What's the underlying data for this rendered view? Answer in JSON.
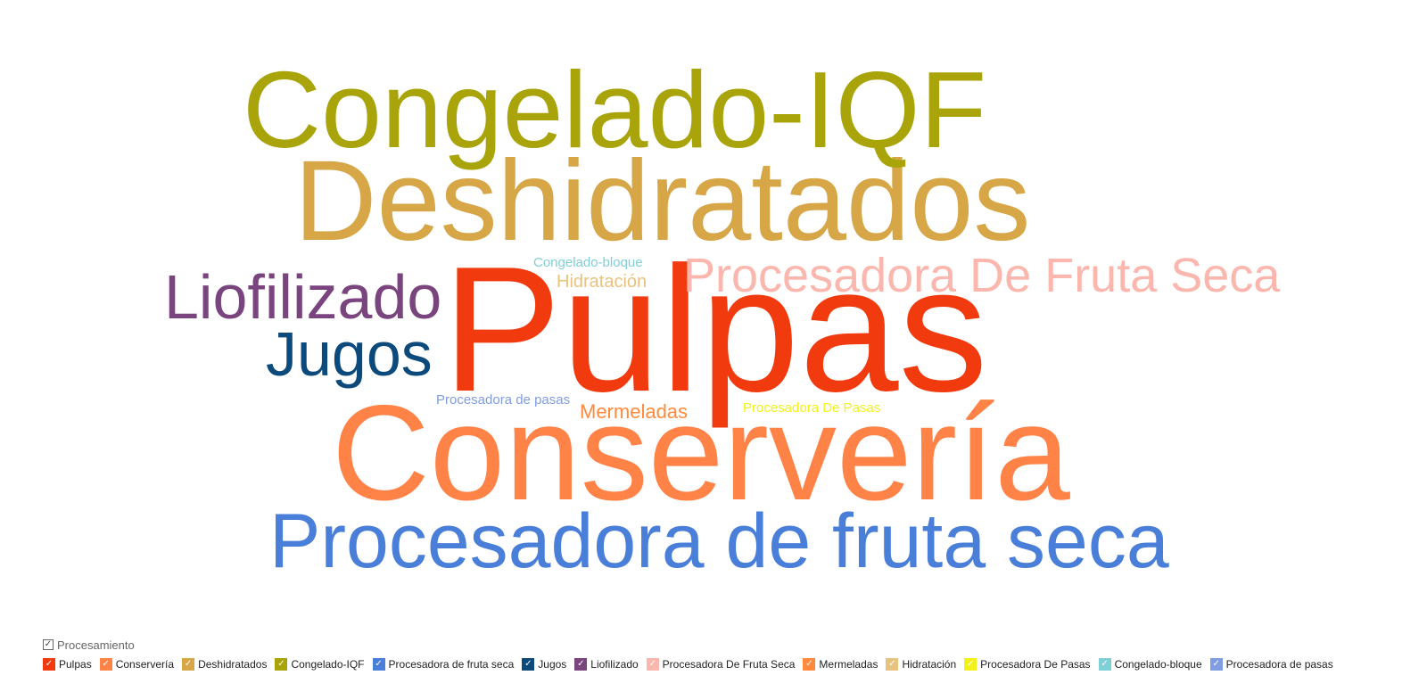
{
  "chart_data": {
    "type": "wordcloud",
    "legend_title": "Procesamiento",
    "legend_placement": "bottom-left",
    "words": [
      {
        "text": "Pulpas",
        "weight": 100,
        "color": "#f23a0f"
      },
      {
        "text": "Conservería",
        "weight": 78,
        "color": "#ff8247"
      },
      {
        "text": "Deshidratados",
        "weight": 72,
        "color": "#d6a647"
      },
      {
        "text": "Congelado-IQF",
        "weight": 68,
        "color": "#a8a40a"
      },
      {
        "text": "Procesadora de fruta seca",
        "weight": 48,
        "color": "#4a7fd9"
      },
      {
        "text": "Jugos",
        "weight": 40,
        "color": "#0c4a7c"
      },
      {
        "text": "Liofilizado",
        "weight": 40,
        "color": "#7a457e"
      },
      {
        "text": "Procesadora De Fruta Seca",
        "weight": 32,
        "color": "#fbb7ad"
      },
      {
        "text": "Mermeladas",
        "weight": 14,
        "color": "#ff8a3d"
      },
      {
        "text": "Hidratación",
        "weight": 12,
        "color": "#e8c27f"
      },
      {
        "text": "Procesadora De Pasas",
        "weight": 10,
        "color": "#f2f21a"
      },
      {
        "text": "Congelado-bloque",
        "weight": 9,
        "color": "#7fcfd6"
      },
      {
        "text": "Procesadora de pasas",
        "weight": 9,
        "color": "#7f9de3"
      }
    ]
  },
  "legend": {
    "header_check": "✓",
    "item_check": "✓"
  }
}
